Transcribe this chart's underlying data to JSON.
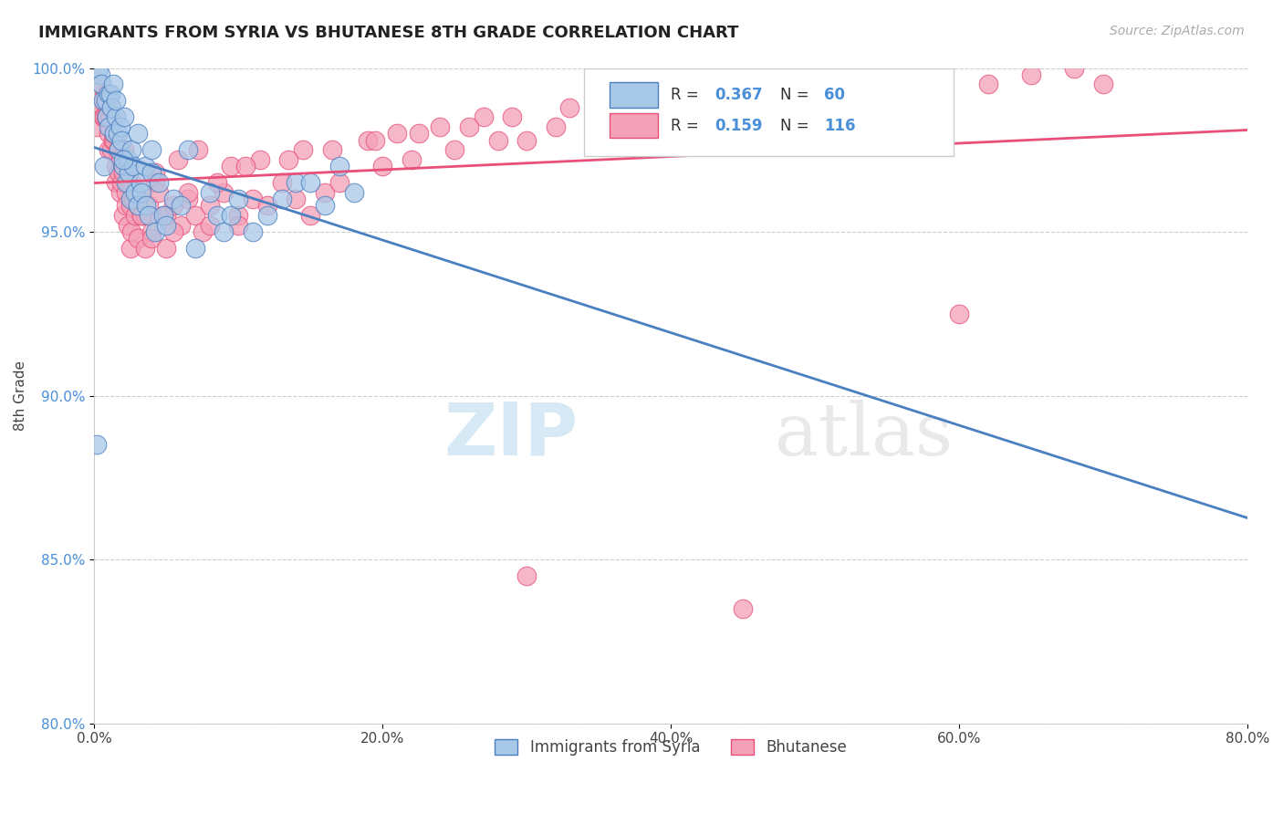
{
  "title": "IMMIGRANTS FROM SYRIA VS BHUTANESE 8TH GRADE CORRELATION CHART",
  "source_text": "Source: ZipAtlas.com",
  "ylabel": "8th Grade",
  "legend_label1": "Immigrants from Syria",
  "legend_label2": "Bhutanese",
  "r1": 0.367,
  "n1": 60,
  "r2": 0.159,
  "n2": 116,
  "xmin": 0.0,
  "xmax": 80.0,
  "ymin": 80.0,
  "ymax": 100.0,
  "xticks": [
    0.0,
    20.0,
    40.0,
    60.0,
    80.0
  ],
  "yticks": [
    80.0,
    85.0,
    90.0,
    95.0,
    100.0
  ],
  "color_syria": "#a8c8e8",
  "color_bhutanese": "#f4a0b8",
  "line_color_syria": "#4a7fc0",
  "line_color_bhutanese": "#e8507a",
  "background_color": "#ffffff",
  "watermark_zip": "ZIP",
  "watermark_atlas": "atlas",
  "syria_x": [
    0.2,
    0.3,
    0.4,
    0.5,
    0.6,
    0.7,
    0.8,
    0.9,
    1.0,
    1.0,
    1.1,
    1.2,
    1.3,
    1.4,
    1.5,
    1.5,
    1.6,
    1.7,
    1.8,
    1.9,
    2.0,
    2.1,
    2.2,
    2.3,
    2.4,
    2.5,
    2.6,
    2.7,
    2.8,
    3.0,
    3.2,
    3.3,
    3.5,
    3.6,
    3.8,
    4.0,
    4.2,
    4.5,
    4.8,
    5.0,
    5.5,
    6.0,
    6.5,
    7.0,
    8.0,
    8.5,
    9.0,
    9.5,
    10.0,
    11.0,
    12.0,
    13.0,
    14.0,
    15.0,
    16.0,
    17.0,
    18.0,
    3.0,
    4.0,
    2.0
  ],
  "syria_y": [
    88.5,
    100.0,
    99.8,
    99.5,
    99.0,
    97.0,
    99.0,
    98.5,
    99.2,
    98.2,
    99.2,
    98.8,
    99.5,
    98.0,
    98.5,
    99.0,
    98.0,
    97.5,
    98.2,
    97.8,
    97.0,
    98.5,
    96.5,
    97.2,
    96.8,
    96.0,
    97.5,
    97.0,
    96.2,
    95.8,
    96.5,
    96.2,
    97.0,
    95.8,
    95.5,
    96.8,
    95.0,
    96.5,
    95.5,
    95.2,
    96.0,
    95.8,
    97.5,
    94.5,
    96.2,
    95.5,
    95.0,
    95.5,
    96.0,
    95.0,
    95.5,
    96.0,
    96.5,
    96.5,
    95.8,
    97.0,
    96.2,
    98.0,
    97.5,
    97.2
  ],
  "bhutanese_x": [
    0.2,
    0.3,
    0.4,
    0.5,
    0.6,
    0.6,
    0.7,
    0.8,
    0.9,
    1.0,
    1.0,
    1.1,
    1.2,
    1.2,
    1.3,
    1.4,
    1.5,
    1.5,
    1.6,
    1.7,
    1.8,
    1.8,
    1.9,
    2.0,
    2.0,
    2.1,
    2.2,
    2.2,
    2.3,
    2.3,
    2.4,
    2.5,
    2.5,
    2.6,
    2.6,
    2.7,
    2.8,
    3.0,
    3.0,
    3.2,
    3.3,
    3.5,
    3.5,
    3.8,
    4.0,
    4.0,
    4.2,
    4.5,
    4.8,
    5.0,
    5.0,
    5.5,
    5.8,
    6.0,
    6.5,
    7.0,
    7.2,
    7.5,
    8.0,
    8.0,
    9.0,
    9.5,
    10.0,
    10.0,
    11.0,
    11.5,
    12.0,
    13.0,
    14.0,
    14.5,
    15.0,
    16.0,
    17.0,
    19.0,
    20.0,
    21.0,
    22.0,
    24.0,
    25.0,
    27.0,
    28.0,
    30.0,
    30.0,
    32.0,
    35.0,
    35.0,
    38.0,
    40.0,
    42.0,
    45.0,
    45.0,
    50.0,
    52.0,
    55.0,
    58.0,
    60.0,
    62.0,
    65.0,
    68.0,
    70.0,
    1.3,
    2.3,
    3.3,
    4.2,
    5.5,
    6.5,
    8.5,
    10.5,
    13.5,
    16.5,
    19.5,
    22.5,
    26.0,
    29.0,
    33.0,
    40.0
  ],
  "bhutanese_y": [
    98.2,
    99.5,
    99.0,
    99.0,
    98.8,
    98.5,
    98.5,
    98.5,
    99.2,
    98.0,
    97.5,
    98.5,
    97.5,
    98.8,
    97.8,
    97.8,
    97.0,
    96.5,
    97.5,
    96.8,
    97.2,
    96.2,
    96.5,
    96.8,
    95.5,
    97.5,
    96.2,
    95.8,
    96.5,
    95.2,
    97.0,
    95.8,
    94.5,
    96.5,
    95.0,
    96.0,
    95.5,
    95.8,
    94.8,
    96.2,
    95.5,
    95.5,
    94.5,
    95.8,
    95.0,
    94.8,
    96.5,
    96.2,
    95.5,
    95.5,
    94.5,
    95.8,
    97.2,
    95.2,
    96.0,
    95.5,
    97.5,
    95.0,
    95.8,
    95.2,
    96.2,
    97.0,
    95.5,
    95.2,
    96.0,
    97.2,
    95.8,
    96.5,
    96.0,
    97.5,
    95.5,
    96.2,
    96.5,
    97.8,
    97.0,
    98.0,
    97.2,
    98.2,
    97.5,
    98.5,
    97.8,
    97.8,
    84.5,
    98.2,
    98.0,
    98.5,
    98.8,
    98.2,
    98.5,
    98.5,
    83.5,
    98.8,
    99.0,
    99.0,
    99.2,
    92.5,
    99.5,
    99.8,
    100.0,
    99.5,
    98.0,
    96.5,
    95.5,
    96.8,
    95.0,
    96.2,
    96.5,
    97.0,
    97.2,
    97.5,
    97.8,
    98.0,
    98.2,
    98.5,
    98.8,
    98.5
  ]
}
